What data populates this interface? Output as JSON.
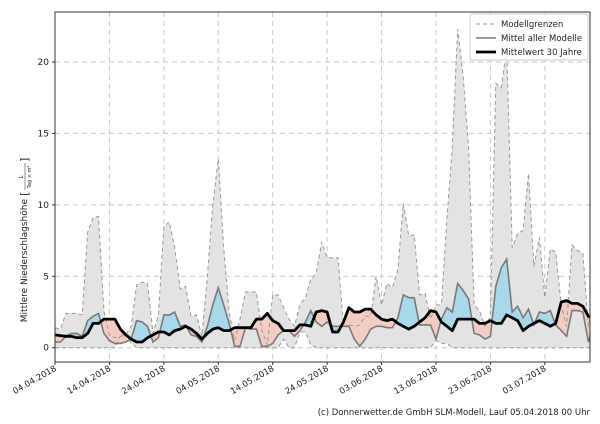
{
  "chart_data": {
    "type": "area",
    "title": "",
    "xlabel": "",
    "ylabel": "Mittlere Niederschlagshöhe",
    "ylabel_unit": {
      "numerator": "L",
      "denominator": "Tag × m²"
    },
    "xlim_days": [
      0,
      98.3
    ],
    "ylim": [
      -1,
      23.5
    ],
    "grid": true,
    "legend_position": "top-right",
    "yticks": [
      0,
      5,
      10,
      15,
      20
    ],
    "xticks": [
      {
        "day": 0,
        "label": "04.04.2018"
      },
      {
        "day": 10,
        "label": "14.04.2018"
      },
      {
        "day": 20,
        "label": "24.04.2018"
      },
      {
        "day": 30,
        "label": "04.05.2018"
      },
      {
        "day": 40,
        "label": "14.05.2018"
      },
      {
        "day": 50,
        "label": "24.05.2018"
      },
      {
        "day": 60,
        "label": "03.06.2018"
      },
      {
        "day": 70,
        "label": "13.06.2018"
      },
      {
        "day": 80,
        "label": "23.06.2018"
      },
      {
        "day": 90,
        "label": "03.07.2018"
      }
    ],
    "legend": [
      "Modellgrenzen",
      "Mittel aller Modelle",
      "Mittelwert 30 Jahre"
    ],
    "series": [
      {
        "name": "Modellgrenzen (oben)",
        "values": [
          1.4,
          1.3,
          2.4,
          2.4,
          2.4,
          2.3,
          8.1,
          9.1,
          9.2,
          2.5,
          0.9,
          0.7,
          0.8,
          0.9,
          1.5,
          4.4,
          4.6,
          4.5,
          1.0,
          2.3,
          8.5,
          8.8,
          7.0,
          4.1,
          4.3,
          2.2,
          2.3,
          0.8,
          5.0,
          10.0,
          13.2,
          7.0,
          2.5,
          0.5,
          2.0,
          3.9,
          3.9,
          3.9,
          1.2,
          0.2,
          3.7,
          3.7,
          2.8,
          2.0,
          1.5,
          3.0,
          3.5,
          4.8,
          5.2,
          7.4,
          6.3,
          6.3,
          6.3,
          1.5,
          1.6,
          1.5,
          1.6,
          2.2,
          2.2,
          5.0,
          3.0,
          4.5,
          4.2,
          5.5,
          10.1,
          7.8,
          7.9,
          3.7,
          3.8,
          2.0,
          3.0,
          3.0,
          9.0,
          14.0,
          22.3,
          19.0,
          14.0,
          3.0,
          2.6,
          1.5,
          2.2,
          18.5,
          18.2,
          21.0,
          7.0,
          8.0,
          8.2,
          12.2,
          5.7,
          7.7,
          3.5,
          6.9,
          6.7,
          3.0,
          1.5,
          7.2,
          6.8,
          6.6,
          1.5,
          3.6
        ]
      },
      {
        "name": "Modellgrenzen (unten)",
        "values": [
          0,
          0,
          0,
          0,
          0,
          0,
          0,
          0,
          0,
          0,
          0,
          0,
          0.8,
          0.9,
          0.3,
          0,
          0,
          0,
          0,
          0,
          0,
          0,
          0,
          0,
          0,
          0,
          0,
          0,
          0,
          0,
          0,
          0,
          0,
          0,
          0,
          0,
          0,
          0,
          0,
          0,
          0,
          0,
          0.6,
          0,
          0,
          1.1,
          1.1,
          0.2,
          0,
          0,
          0,
          0,
          0,
          0,
          0,
          0,
          0,
          0,
          0,
          0,
          0,
          0,
          0,
          0,
          0,
          0,
          0,
          0,
          0,
          0,
          0.5,
          0.3,
          0.3,
          0,
          0,
          0,
          0,
          0,
          0,
          0,
          0,
          0,
          0,
          0,
          0,
          0,
          0,
          0,
          0,
          0,
          0,
          0,
          0,
          0,
          0,
          0,
          0,
          0,
          0,
          0
        ]
      },
      {
        "name": "Mittel aller Modelle",
        "values": [
          0.4,
          0.4,
          0.8,
          1.0,
          1.0,
          0.8,
          1.9,
          2.2,
          2.4,
          1.0,
          0.5,
          0.3,
          0.3,
          0.4,
          0.6,
          1.9,
          1.8,
          1.5,
          0.4,
          0.7,
          2.3,
          2.3,
          2.5,
          1.5,
          1.6,
          0.9,
          0.8,
          0.4,
          1.5,
          3.0,
          4.2,
          3.0,
          1.7,
          0.1,
          0.1,
          1.4,
          1.3,
          1.3,
          0.1,
          0.1,
          0.3,
          0.9,
          1.2,
          1.2,
          0.8,
          1.2,
          1.8,
          2.6,
          1.8,
          1.5,
          1.8,
          1.5,
          1.5,
          1.5,
          1.5,
          0.6,
          0.1,
          0.6,
          1.3,
          1.5,
          1.5,
          1.4,
          1.4,
          2.1,
          3.7,
          3.5,
          3.5,
          1.6,
          1.6,
          1.6,
          0.6,
          2.0,
          2.8,
          2.5,
          4.5,
          4.0,
          3.4,
          1.0,
          0.9,
          0.6,
          0.8,
          4.3,
          5.6,
          6.2,
          2.5,
          2.9,
          2.1,
          2.7,
          1.6,
          2.5,
          2.4,
          2.6,
          1.6,
          1.2,
          0.8,
          2.6,
          2.6,
          2.5,
          0.4,
          1.8
        ]
      },
      {
        "name": "Mittelwert 30 Jahre",
        "values": [
          0.9,
          0.85,
          0.8,
          0.8,
          0.7,
          0.7,
          1.0,
          1.7,
          1.7,
          2.0,
          2.0,
          2.0,
          1.3,
          0.9,
          0.6,
          0.4,
          0.4,
          0.7,
          0.9,
          1.1,
          1.1,
          0.9,
          1.2,
          1.3,
          1.5,
          1.3,
          1.0,
          0.6,
          1.0,
          1.3,
          1.4,
          1.2,
          1.2,
          1.4,
          1.4,
          1.4,
          1.4,
          2.0,
          2.0,
          2.4,
          1.9,
          1.7,
          1.2,
          1.2,
          1.2,
          1.6,
          1.6,
          1.5,
          2.5,
          2.6,
          2.5,
          1.1,
          1.1,
          1.8,
          2.8,
          2.5,
          2.5,
          2.7,
          2.7,
          2.3,
          2.0,
          1.9,
          2.0,
          1.7,
          1.5,
          1.3,
          1.5,
          1.8,
          2.1,
          2.6,
          2.5,
          1.8,
          1.5,
          1.2,
          2.0,
          2.0,
          2.0,
          2.0,
          1.7,
          1.7,
          1.9,
          1.7,
          1.7,
          2.3,
          2.1,
          1.9,
          1.2,
          1.5,
          1.7,
          1.9,
          1.7,
          1.5,
          1.7,
          3.2,
          3.3,
          3.1,
          3.1,
          2.9,
          2.2,
          2.1
        ]
      }
    ]
  },
  "colors": {
    "band": "#e3e3e3",
    "above": "#a8d8ea",
    "below": "#f3cdc4",
    "model": "#7a7a7a",
    "clim": "#000000",
    "bounds": "#999999"
  },
  "footer": "(c) Donnerwetter.de GmbH SLM-Modell, Lauf 05.04.2018 00 Uhr"
}
